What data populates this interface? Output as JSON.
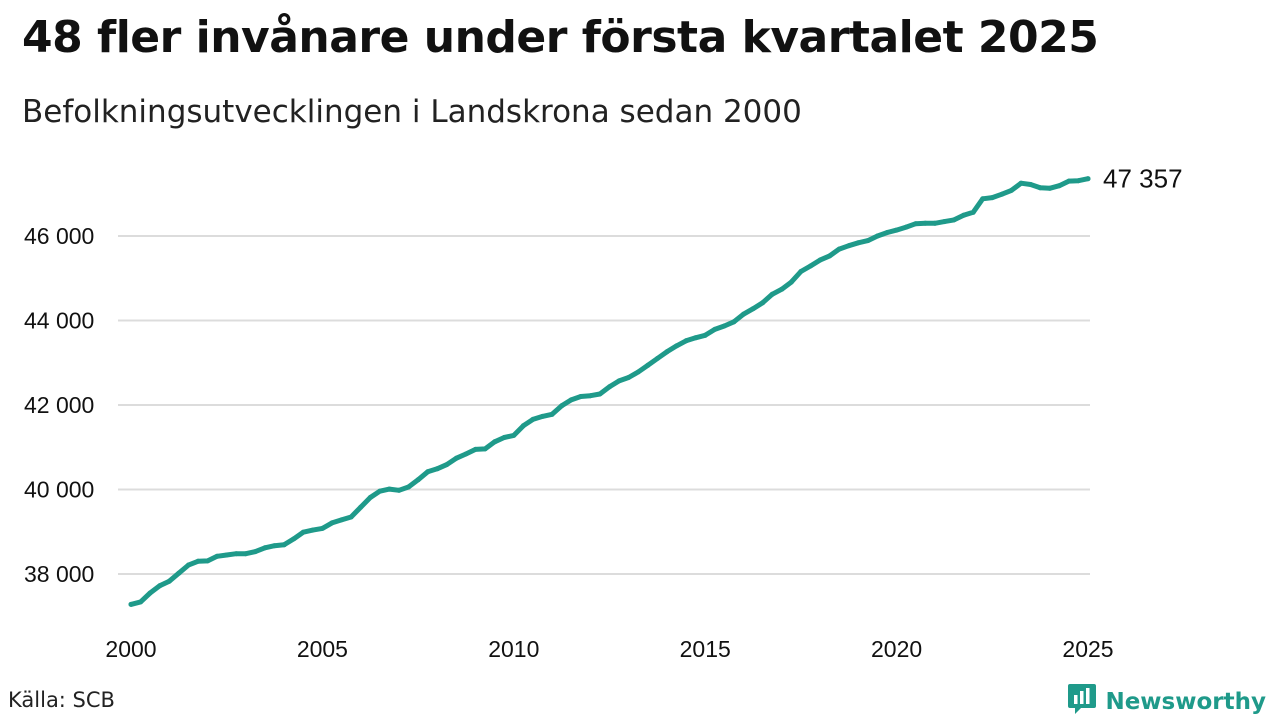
{
  "title": "48 fler invånare under första kvartalet 2025",
  "subtitle": "Befolkningsutvecklingen i Landskrona sedan 2000",
  "source": "Källa: SCB",
  "brand": {
    "name": "Newsworthy",
    "icon": "newsworthy-logo-icon"
  },
  "colors": {
    "line": "#1f9a8a",
    "grid": "#dcdcdc",
    "text": "#111111"
  },
  "chart_data": {
    "type": "line",
    "title": "48 fler invånare under första kvartalet 2025",
    "subtitle": "Befolkningsutvecklingen i Landskrona sedan 2000",
    "xlabel": "",
    "ylabel": "",
    "xlim": [
      2000,
      2025
    ],
    "ylim": [
      37000,
      47500
    ],
    "grid": true,
    "x_ticks": [
      2000,
      2005,
      2010,
      2015,
      2020,
      2025
    ],
    "x_tick_labels": [
      "2000",
      "2005",
      "2010",
      "2015",
      "2020",
      "2025"
    ],
    "y_ticks": [
      38000,
      40000,
      42000,
      44000,
      46000
    ],
    "y_tick_labels": [
      "38 000",
      "40 000",
      "42 000",
      "44 000",
      "46 000"
    ],
    "end_label": "47 357",
    "series": [
      {
        "x": [
          2000,
          2000.25,
          2000.5,
          2000.75,
          2001,
          2001.25,
          2001.5,
          2001.75,
          2002,
          2002.25,
          2002.5,
          2002.75,
          2003,
          2003.25,
          2003.5,
          2003.75,
          2004,
          2004.25,
          2004.5,
          2004.75,
          2005,
          2005.25,
          2005.5,
          2005.75,
          2006,
          2006.25,
          2006.5,
          2006.75,
          2007,
          2007.25,
          2007.5,
          2007.75,
          2008,
          2008.25,
          2008.5,
          2008.75,
          2009,
          2009.25,
          2009.5,
          2009.75,
          2010,
          2010.25,
          2010.5,
          2010.75,
          2011,
          2011.25,
          2011.5,
          2011.75,
          2012,
          2012.25,
          2012.5,
          2012.75,
          2013,
          2013.25,
          2013.5,
          2013.75,
          2014,
          2014.25,
          2014.5,
          2014.75,
          2015,
          2015.25,
          2015.5,
          2015.75,
          2016,
          2016.25,
          2016.5,
          2016.75,
          2017,
          2017.25,
          2017.5,
          2017.75,
          2018,
          2018.25,
          2018.5,
          2018.75,
          2019,
          2019.25,
          2019.5,
          2019.75,
          2020,
          2020.25,
          2020.5,
          2020.75,
          2021,
          2021.25,
          2021.5,
          2021.75,
          2022,
          2022.25,
          2022.5,
          2022.75,
          2023,
          2023.25,
          2023.5,
          2023.75,
          2024,
          2024.25,
          2024.5,
          2024.75,
          2025
        ],
        "values": [
          37280,
          37340,
          37550,
          37720,
          37830,
          38020,
          38210,
          38300,
          38310,
          38420,
          38450,
          38480,
          38480,
          38530,
          38620,
          38670,
          38690,
          38830,
          38990,
          39040,
          39080,
          39210,
          39280,
          39350,
          39580,
          39810,
          39960,
          40010,
          39980,
          40060,
          40230,
          40420,
          40490,
          40590,
          40740,
          40840,
          40950,
          40960,
          41130,
          41230,
          41280,
          41510,
          41660,
          41730,
          41780,
          41980,
          42120,
          42200,
          42220,
          42260,
          42430,
          42570,
          42650,
          42780,
          42940,
          43100,
          43260,
          43400,
          43520,
          43590,
          43650,
          43790,
          43870,
          43970,
          44150,
          44280,
          44420,
          44620,
          44740,
          44910,
          45160,
          45290,
          45430,
          45530,
          45690,
          45770,
          45840,
          45890,
          46000,
          46080,
          46140,
          46210,
          46290,
          46300,
          46300,
          46340,
          46380,
          46490,
          46560,
          46880,
          46910,
          46990,
          47080,
          47250,
          47220,
          47140,
          47130,
          47190,
          47300,
          47310,
          47357
        ]
      }
    ]
  }
}
